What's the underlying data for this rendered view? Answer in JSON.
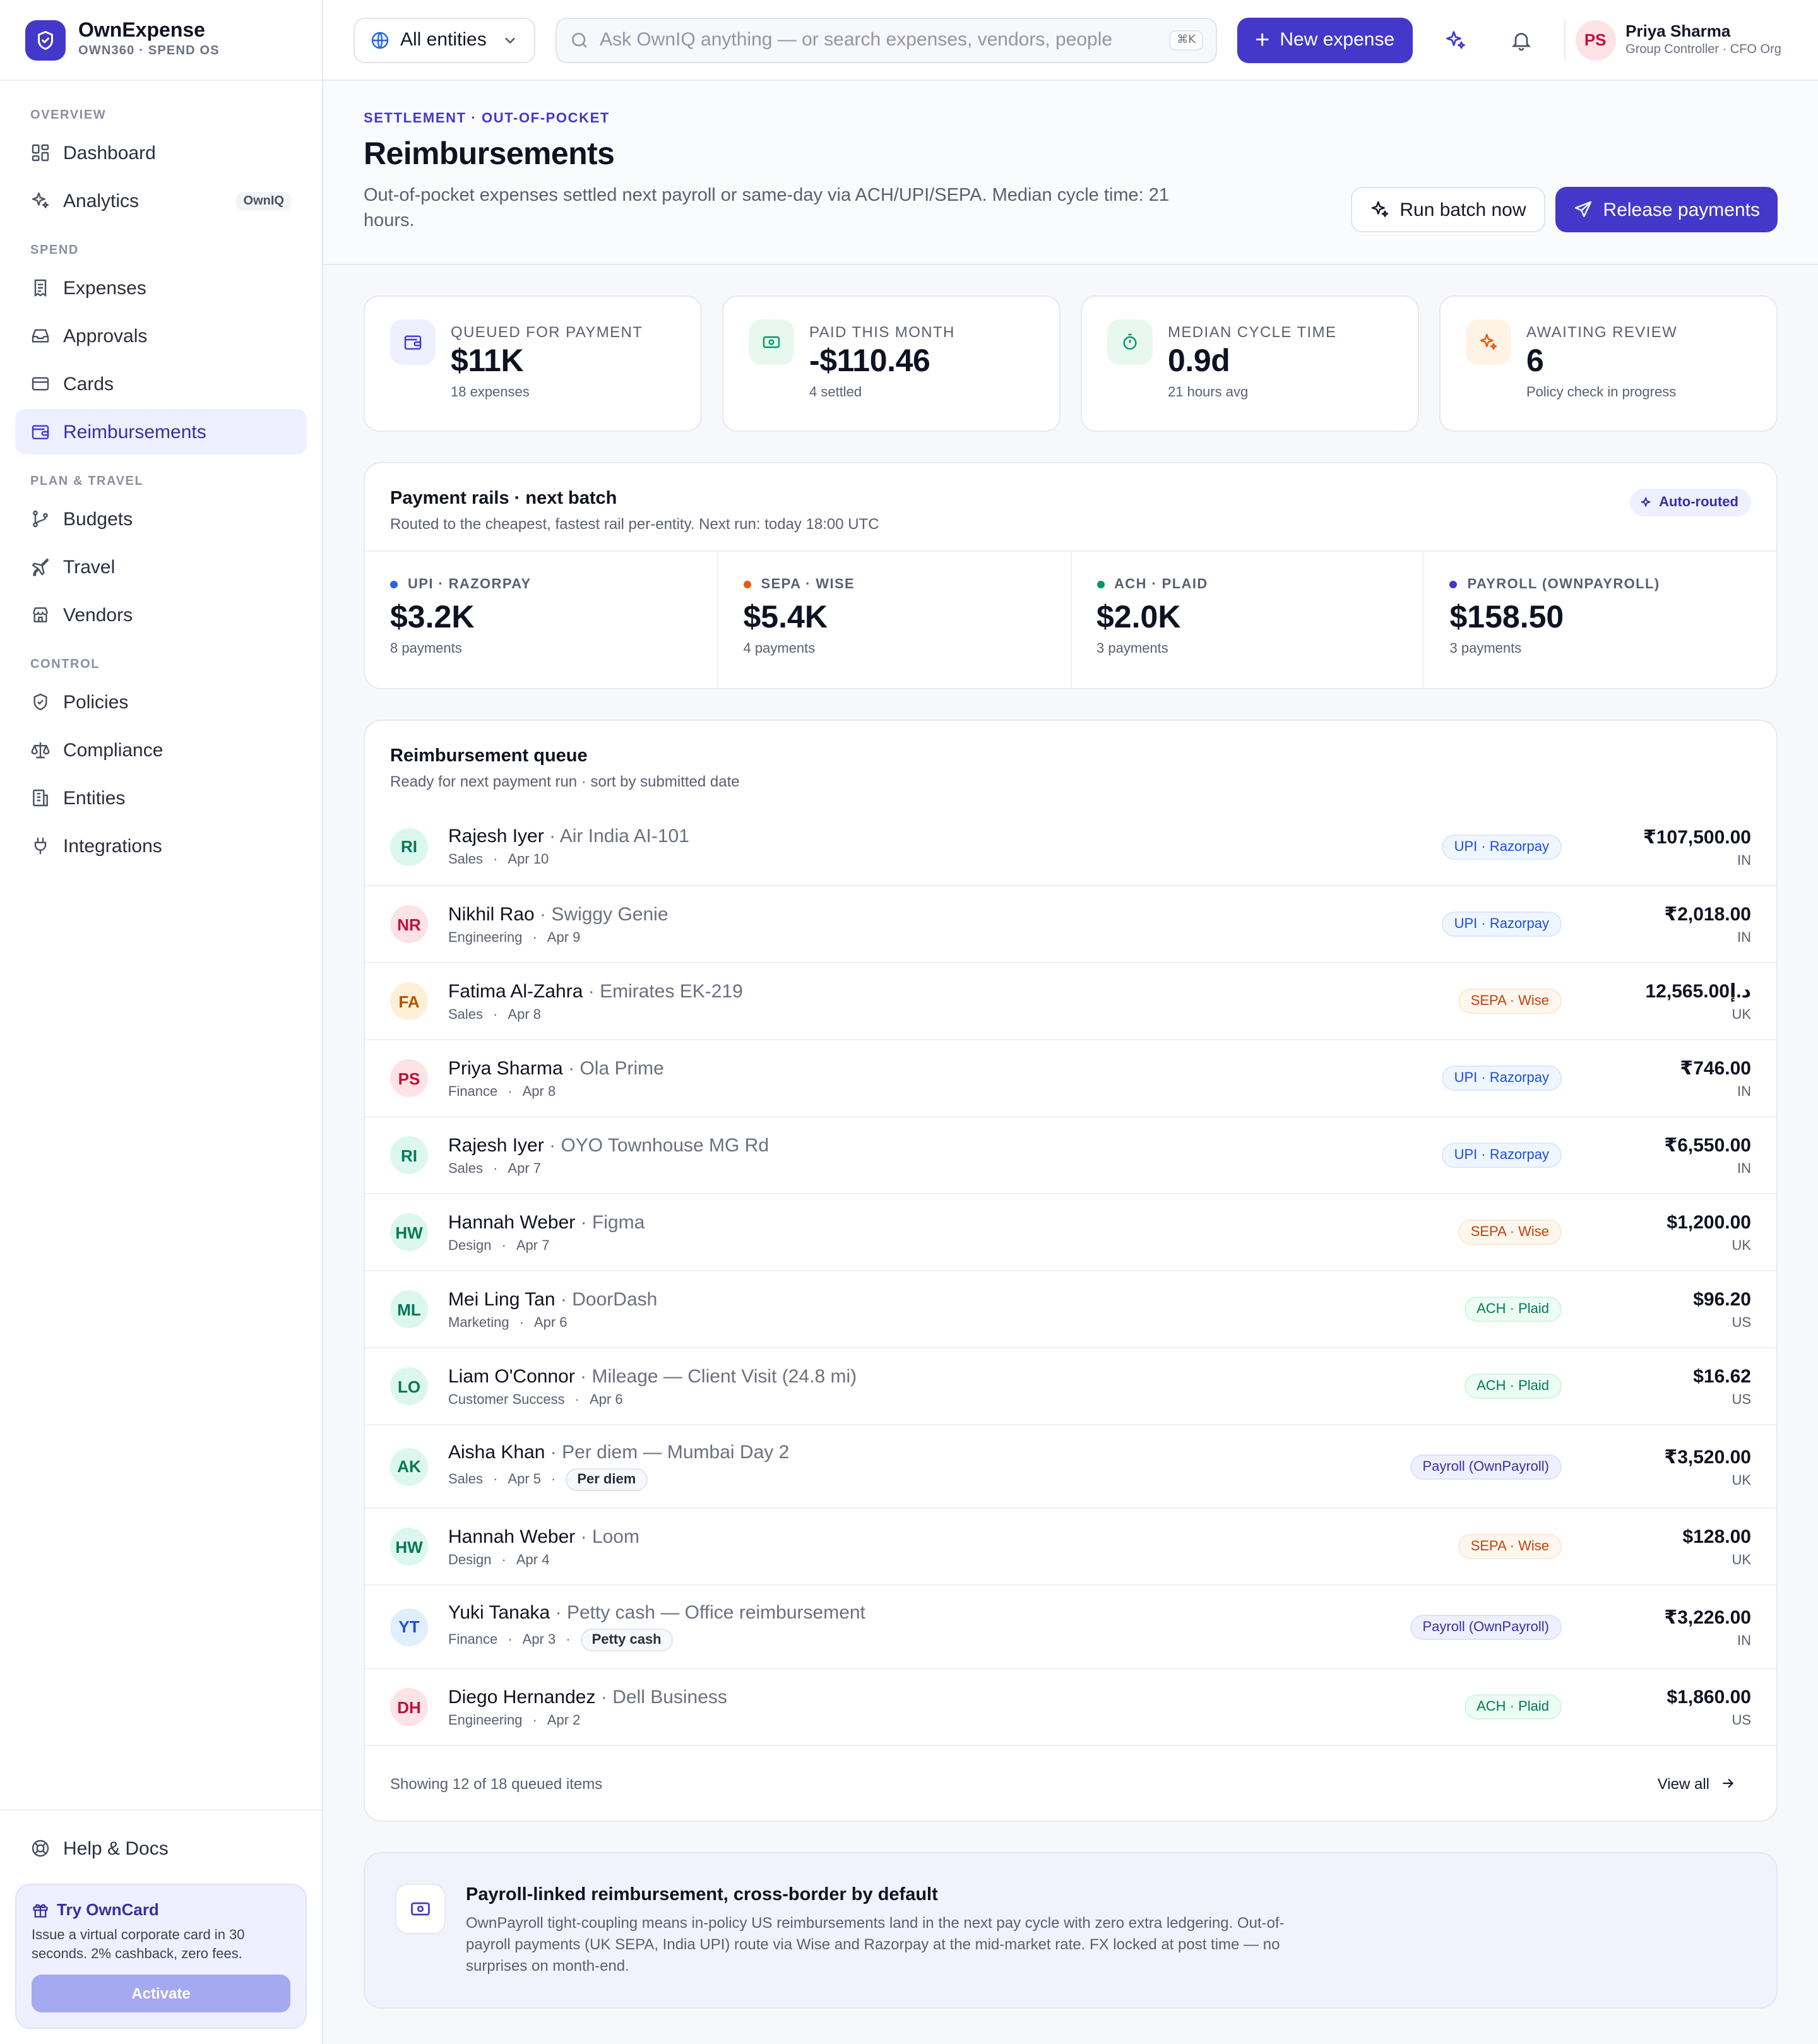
{
  "brand": {
    "name": "OwnExpense",
    "sub": "OWN360 · SPEND OS"
  },
  "sidebar": {
    "sections": [
      {
        "label": "OVERVIEW",
        "items": [
          {
            "label": "Dashboard",
            "icon": "grid-icon"
          },
          {
            "label": "Analytics",
            "icon": "sparkle-icon",
            "badge": "OwnIQ"
          }
        ]
      },
      {
        "label": "SPEND",
        "items": [
          {
            "label": "Expenses",
            "icon": "receipt-icon"
          },
          {
            "label": "Approvals",
            "icon": "inbox-icon"
          },
          {
            "label": "Cards",
            "icon": "card-icon"
          },
          {
            "label": "Reimbursements",
            "icon": "wallet-icon",
            "active": true
          }
        ]
      },
      {
        "label": "PLAN & TRAVEL",
        "items": [
          {
            "label": "Budgets",
            "icon": "branch-icon"
          },
          {
            "label": "Travel",
            "icon": "plane-icon"
          },
          {
            "label": "Vendors",
            "icon": "store-icon"
          }
        ]
      },
      {
        "label": "CONTROL",
        "items": [
          {
            "label": "Policies",
            "icon": "shield-icon"
          },
          {
            "label": "Compliance",
            "icon": "scale-icon"
          },
          {
            "label": "Entities",
            "icon": "building-icon"
          },
          {
            "label": "Integrations",
            "icon": "plug-icon"
          }
        ]
      }
    ],
    "help": "Help & Docs",
    "promo": {
      "title": "Try OwnCard",
      "text": "Issue a virtual corporate card in 30 seconds. 2% cashback, zero fees.",
      "button": "Activate"
    }
  },
  "topbar": {
    "entity": "All entities",
    "search_placeholder": "Ask OwnIQ anything — or search expenses, vendors, people",
    "search_kbd": "⌘K",
    "new_expense": "New expense",
    "user": {
      "initials": "PS",
      "name": "Priya Sharma",
      "role": "Group Controller · CFO Org"
    }
  },
  "page": {
    "eyebrow": "SETTLEMENT · OUT-OF-POCKET",
    "title": "Reimbursements",
    "description": "Out-of-pocket expenses settled next payroll or same-day via ACH/UPI/SEPA. Median cycle time: 21 hours.",
    "run_batch": "Run batch now",
    "release": "Release payments"
  },
  "kpis": [
    {
      "label": "QUEUED FOR PAYMENT",
      "value": "$11K",
      "sub": "18 expenses",
      "icon": "wallet-icon",
      "bg": "#eef0ff",
      "fg": "#4338ca"
    },
    {
      "label": "PAID THIS MONTH",
      "value": "-$110.46",
      "sub": "4 settled",
      "icon": "cash-icon",
      "bg": "#e8f8ef",
      "fg": "#059669"
    },
    {
      "label": "MEDIAN CYCLE TIME",
      "value": "0.9d",
      "sub": "21 hours avg",
      "icon": "timer-icon",
      "bg": "#e8f8ef",
      "fg": "#059669"
    },
    {
      "label": "AWAITING REVIEW",
      "value": "6",
      "sub": "Policy check in progress",
      "icon": "sparkle-icon",
      "bg": "#fff3e6",
      "fg": "#ea580c"
    }
  ],
  "rails": {
    "title": "Payment rails · next batch",
    "subtitle": "Routed to the cheapest, fastest rail per-entity. Next run: today 18:00 UTC",
    "chip": "Auto-routed",
    "items": [
      {
        "label": "UPI · RAZORPAY",
        "value": "$3.2K",
        "sub": "8 payments",
        "color": "#2563eb"
      },
      {
        "label": "SEPA · WISE",
        "value": "$5.4K",
        "sub": "4 payments",
        "color": "#ea580c"
      },
      {
        "label": "ACH · PLAID",
        "value": "$2.0K",
        "sub": "3 payments",
        "color": "#059669"
      },
      {
        "label": "PAYROLL (OWNPAYROLL)",
        "value": "$158.50",
        "sub": "3 payments",
        "color": "#4338ca"
      }
    ]
  },
  "queue": {
    "title": "Reimbursement queue",
    "subtitle": "Ready for next payment run · sort by submitted date",
    "rows": [
      {
        "initials": "RI",
        "name": "Rajesh Iyer",
        "desc": "Air India AI-101",
        "dept": "Sales",
        "date": "Apr 10",
        "rail": "UPI · Razorpay",
        "kind": "upi",
        "amount": "₹107,500.00",
        "country": "IN",
        "av_bg": "#dcf7ee",
        "av_fg": "#047857"
      },
      {
        "initials": "NR",
        "name": "Nikhil Rao",
        "desc": "Swiggy Genie",
        "dept": "Engineering",
        "date": "Apr 9",
        "rail": "UPI · Razorpay",
        "kind": "upi",
        "amount": "₹2,018.00",
        "country": "IN",
        "av_bg": "#fde2e6",
        "av_fg": "#be123c"
      },
      {
        "initials": "FA",
        "name": "Fatima Al-Zahra",
        "desc": "Emirates EK-219",
        "dept": "Sales",
        "date": "Apr 8",
        "rail": "SEPA · Wise",
        "kind": "sepa",
        "amount": "12,565.00د.إ",
        "country": "UK",
        "av_bg": "#fdf0d5",
        "av_fg": "#b45309"
      },
      {
        "initials": "PS",
        "name": "Priya Sharma",
        "desc": "Ola Prime",
        "dept": "Finance",
        "date": "Apr 8",
        "rail": "UPI · Razorpay",
        "kind": "upi",
        "amount": "₹746.00",
        "country": "IN",
        "av_bg": "#fde2e6",
        "av_fg": "#be123c"
      },
      {
        "initials": "RI",
        "name": "Rajesh Iyer",
        "desc": "OYO Townhouse MG Rd",
        "dept": "Sales",
        "date": "Apr 7",
        "rail": "UPI · Razorpay",
        "kind": "upi",
        "amount": "₹6,550.00",
        "country": "IN",
        "av_bg": "#dcf7ee",
        "av_fg": "#047857"
      },
      {
        "initials": "HW",
        "name": "Hannah Weber",
        "desc": "Figma",
        "dept": "Design",
        "date": "Apr 7",
        "rail": "SEPA · Wise",
        "kind": "sepa",
        "amount": "$1,200.00",
        "country": "UK",
        "av_bg": "#dcf7ee",
        "av_fg": "#047857"
      },
      {
        "initials": "ML",
        "name": "Mei Ling Tan",
        "desc": "DoorDash",
        "dept": "Marketing",
        "date": "Apr 6",
        "rail": "ACH · Plaid",
        "kind": "ach",
        "amount": "$96.20",
        "country": "US",
        "av_bg": "#dcf7ee",
        "av_fg": "#047857"
      },
      {
        "initials": "LO",
        "name": "Liam O'Connor",
        "desc": "Mileage — Client Visit (24.8 mi)",
        "dept": "Customer Success",
        "date": "Apr 6",
        "rail": "ACH · Plaid",
        "kind": "ach",
        "amount": "$16.62",
        "country": "US",
        "av_bg": "#dcf7ee",
        "av_fg": "#047857"
      },
      {
        "initials": "AK",
        "name": "Aisha Khan",
        "desc": "Per diem — Mumbai Day 2",
        "dept": "Sales",
        "date": "Apr 5",
        "tag": "Per diem",
        "rail": "Payroll (OwnPayroll)",
        "kind": "payroll",
        "amount": "₹3,520.00",
        "country": "UK",
        "av_bg": "#dcf7ee",
        "av_fg": "#047857"
      },
      {
        "initials": "HW",
        "name": "Hannah Weber",
        "desc": "Loom",
        "dept": "Design",
        "date": "Apr 4",
        "rail": "SEPA · Wise",
        "kind": "sepa",
        "amount": "$128.00",
        "country": "UK",
        "av_bg": "#dcf7ee",
        "av_fg": "#047857"
      },
      {
        "initials": "YT",
        "name": "Yuki Tanaka",
        "desc": "Petty cash — Office reimbursement",
        "dept": "Finance",
        "date": "Apr 3",
        "tag": "Petty cash",
        "rail": "Payroll (OwnPayroll)",
        "kind": "payroll",
        "amount": "₹3,226.00",
        "country": "IN",
        "av_bg": "#e0effe",
        "av_fg": "#1d4ed8"
      },
      {
        "initials": "DH",
        "name": "Diego Hernandez",
        "desc": "Dell Business",
        "dept": "Engineering",
        "date": "Apr 2",
        "rail": "ACH · Plaid",
        "kind": "ach",
        "amount": "$1,860.00",
        "country": "US",
        "av_bg": "#fde2e6",
        "av_fg": "#be123c"
      }
    ],
    "footer": "Showing 12 of 18 queued items",
    "view_all": "View all"
  },
  "banner": {
    "title": "Payroll-linked reimbursement, cross-border by default",
    "text": "OwnPayroll tight-coupling means in-policy US reimbursements land in the next pay cycle with zero extra ledgering. Out-of-payroll payments (UK SEPA, India UPI) route via Wise and Razorpay at the mid-market rate. FX locked at post time — no surprises on month-end."
  }
}
